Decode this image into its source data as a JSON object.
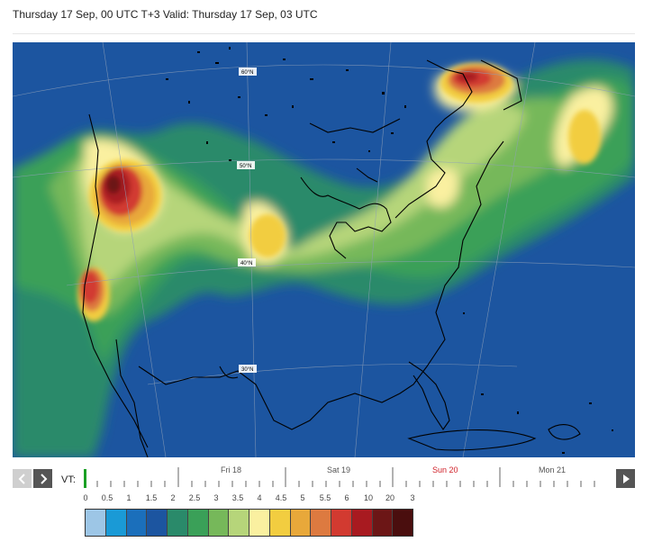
{
  "header": {
    "title": "Thursday 17 Sep, 00 UTC T+3 Valid: Thursday 17 Sep, 03 UTC"
  },
  "map": {
    "lat_labels": [
      "60°N",
      "50°N",
      "40°N",
      "30°N"
    ],
    "ocean_color": "#1c55a0",
    "coast_color": "#000000"
  },
  "controls": {
    "prev_icon": "chevron-left-icon",
    "next_icon": "chevron-right-icon",
    "play_icon": "play-icon",
    "vt_label": "VT:"
  },
  "timeline": {
    "days": [
      {
        "label": "Fri 18",
        "weekend": false
      },
      {
        "label": "Sat 19",
        "weekend": false
      },
      {
        "label": "Sun 20",
        "weekend": true
      },
      {
        "label": "Mon 21",
        "weekend": false
      }
    ],
    "current_step": 0
  },
  "legend": {
    "labels": [
      "0",
      "0.5",
      "1",
      "1.5",
      "2",
      "2.5",
      "3",
      "3.5",
      "4",
      "4.5",
      "5",
      "5.5",
      "6",
      "10",
      "20",
      "3"
    ],
    "colors": [
      "#9dc6e6",
      "#1a9ad6",
      "#1b6fbb",
      "#1c55a0",
      "#2a8a6a",
      "#3aa058",
      "#76b85a",
      "#b6d57a",
      "#faf0a0",
      "#f2cd40",
      "#e8a83a",
      "#dd7a40",
      "#d23a30",
      "#a81a20",
      "#6c1616",
      "#4a0e0e"
    ]
  }
}
